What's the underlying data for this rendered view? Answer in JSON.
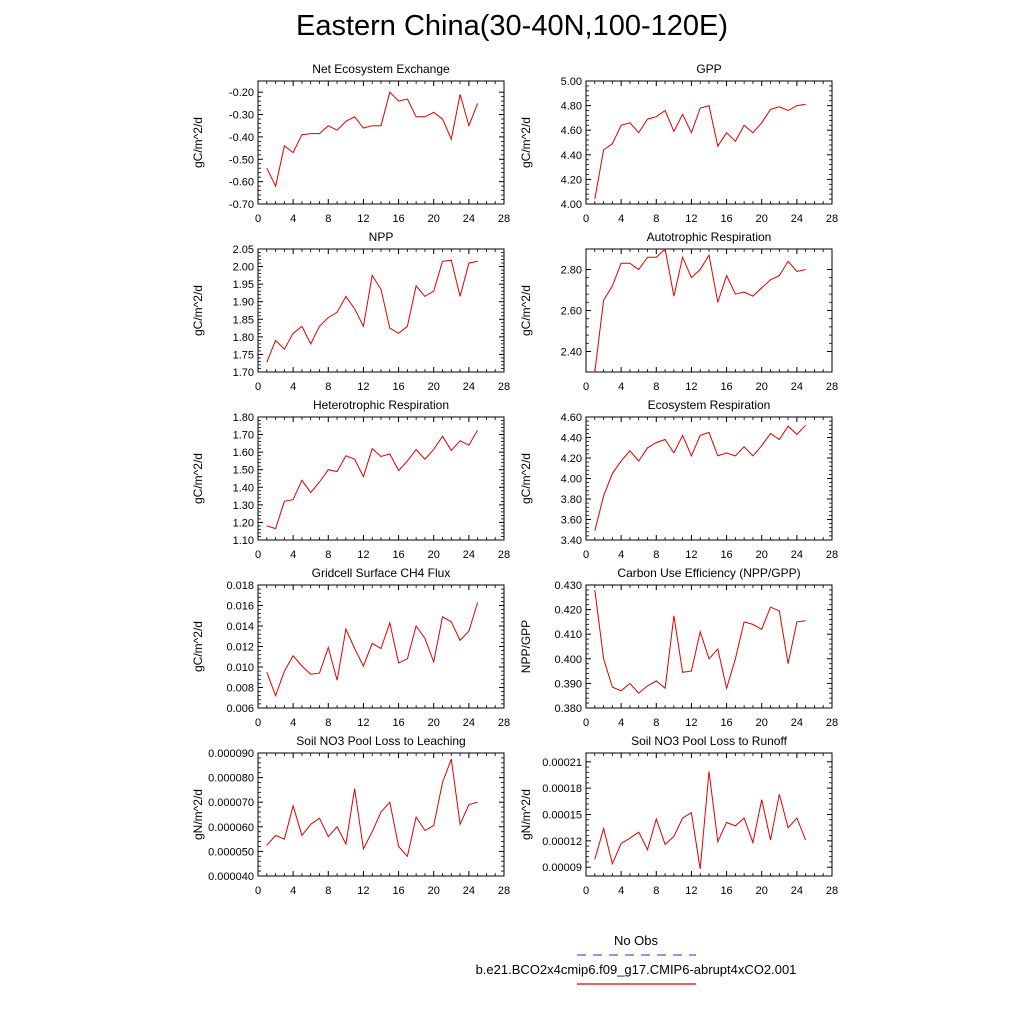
{
  "page": {
    "title": "Eastern China(30-40N,100-120E)"
  },
  "legend": {
    "obs_label": "No Obs",
    "obs_color": "#5555dd",
    "model_label": "b.e21.BCO2x4cmip6.f09_g17.CMIP6-abrupt4xCO2.001",
    "model_color": "#e00000"
  },
  "chart_data": [
    {
      "type": "line",
      "title": "Net Ecosystem Exchange",
      "ylabel": "gC/m^2/d",
      "xlabel": "",
      "xlim": [
        0,
        28
      ],
      "xticks": [
        0,
        4,
        8,
        12,
        16,
        20,
        24,
        28
      ],
      "ylim": [
        -0.7,
        -0.15
      ],
      "yticks": [
        -0.7,
        -0.6,
        -0.5,
        -0.4,
        -0.3,
        -0.2
      ],
      "ytick_labels": [
        "-0.70",
        "-0.60",
        "-0.50",
        "-0.40",
        "-0.30",
        "-0.20"
      ],
      "series": [
        {
          "name": "b.e21.BCO2x4cmip6.f09_g17.CMIP6-abrupt4xCO2.001",
          "x": [
            1,
            2,
            3,
            4,
            5,
            6,
            7,
            8,
            9,
            10,
            11,
            12,
            13,
            14,
            15,
            16,
            17,
            18,
            19,
            20,
            21,
            22,
            23,
            24,
            25
          ],
          "values": [
            -0.54,
            -0.62,
            -0.44,
            -0.47,
            -0.39,
            -0.385,
            -0.385,
            -0.35,
            -0.37,
            -0.33,
            -0.31,
            -0.36,
            -0.35,
            -0.35,
            -0.2,
            -0.24,
            -0.23,
            -0.31,
            -0.31,
            -0.29,
            -0.32,
            -0.41,
            -0.21,
            -0.35,
            -0.25
          ]
        }
      ]
    },
    {
      "type": "line",
      "title": "GPP",
      "ylabel": "gC/m^2/d",
      "xlabel": "",
      "xlim": [
        0,
        28
      ],
      "xticks": [
        0,
        4,
        8,
        12,
        16,
        20,
        24,
        28
      ],
      "ylim": [
        4.0,
        5.0
      ],
      "yticks": [
        4.0,
        4.2,
        4.4,
        4.6,
        4.8,
        5.0
      ],
      "ytick_labels": [
        "4.00",
        "4.20",
        "4.40",
        "4.60",
        "4.80",
        "5.00"
      ],
      "series": [
        {
          "name": "b.e21.BCO2x4cmip6.f09_g17.CMIP6-abrupt4xCO2.001",
          "x": [
            1,
            2,
            3,
            4,
            5,
            6,
            7,
            8,
            9,
            10,
            11,
            12,
            13,
            14,
            15,
            16,
            17,
            18,
            19,
            20,
            21,
            22,
            23,
            24,
            25
          ],
          "values": [
            4.04,
            4.44,
            4.49,
            4.64,
            4.66,
            4.58,
            4.69,
            4.71,
            4.76,
            4.59,
            4.73,
            4.58,
            4.78,
            4.8,
            4.47,
            4.58,
            4.51,
            4.64,
            4.58,
            4.66,
            4.77,
            4.79,
            4.76,
            4.8,
            4.81
          ]
        }
      ]
    },
    {
      "type": "line",
      "title": "NPP",
      "ylabel": "gC/m^2/d",
      "xlabel": "",
      "xlim": [
        0,
        28
      ],
      "xticks": [
        0,
        4,
        8,
        12,
        16,
        20,
        24,
        28
      ],
      "ylim": [
        1.7,
        2.05
      ],
      "yticks": [
        1.7,
        1.75,
        1.8,
        1.85,
        1.9,
        1.95,
        2.0,
        2.05
      ],
      "ytick_labels": [
        "1.70",
        "1.75",
        "1.80",
        "1.85",
        "1.90",
        "1.95",
        "2.00",
        "2.05"
      ],
      "series": [
        {
          "name": "b.e21.BCO2x4cmip6.f09_g17.CMIP6-abrupt4xCO2.001",
          "x": [
            1,
            2,
            3,
            4,
            5,
            6,
            7,
            8,
            9,
            10,
            11,
            12,
            13,
            14,
            15,
            16,
            17,
            18,
            19,
            20,
            21,
            22,
            23,
            24,
            25
          ],
          "values": [
            1.728,
            1.79,
            1.765,
            1.81,
            1.83,
            1.78,
            1.83,
            1.855,
            1.87,
            1.915,
            1.88,
            1.83,
            1.975,
            1.935,
            1.825,
            1.81,
            1.83,
            1.945,
            1.915,
            1.93,
            2.015,
            2.018,
            1.915,
            2.01,
            2.015
          ]
        }
      ]
    },
    {
      "type": "line",
      "title": "Autotrophic Respiration",
      "ylabel": "gC/m^2/d",
      "xlabel": "",
      "xlim": [
        0,
        28
      ],
      "xticks": [
        0,
        4,
        8,
        12,
        16,
        20,
        24,
        28
      ],
      "ylim": [
        2.3,
        2.9
      ],
      "yticks": [
        2.4,
        2.6,
        2.8
      ],
      "ytick_labels": [
        "2.40",
        "2.60",
        "2.80"
      ],
      "series": [
        {
          "name": "b.e21.BCO2x4cmip6.f09_g17.CMIP6-abrupt4xCO2.001",
          "x": [
            1,
            2,
            3,
            4,
            5,
            6,
            7,
            8,
            9,
            10,
            11,
            12,
            13,
            14,
            15,
            16,
            17,
            18,
            19,
            20,
            21,
            22,
            23,
            24,
            25
          ],
          "values": [
            2.3,
            2.65,
            2.72,
            2.83,
            2.83,
            2.8,
            2.86,
            2.86,
            2.9,
            2.67,
            2.86,
            2.76,
            2.8,
            2.87,
            2.64,
            2.77,
            2.68,
            2.69,
            2.67,
            2.71,
            2.75,
            2.77,
            2.84,
            2.79,
            2.8
          ]
        }
      ]
    },
    {
      "type": "line",
      "title": "Heterotrophic Respiration",
      "ylabel": "gC/m^2/d",
      "xlabel": "",
      "xlim": [
        0,
        28
      ],
      "xticks": [
        0,
        4,
        8,
        12,
        16,
        20,
        24,
        28
      ],
      "ylim": [
        1.1,
        1.8
      ],
      "yticks": [
        1.1,
        1.2,
        1.3,
        1.4,
        1.5,
        1.6,
        1.7,
        1.8
      ],
      "ytick_labels": [
        "1.10",
        "1.20",
        "1.30",
        "1.40",
        "1.50",
        "1.60",
        "1.70",
        "1.80"
      ],
      "series": [
        {
          "name": "b.e21.BCO2x4cmip6.f09_g17.CMIP6-abrupt4xCO2.001",
          "x": [
            1,
            2,
            3,
            4,
            5,
            6,
            7,
            8,
            9,
            10,
            11,
            12,
            13,
            14,
            15,
            16,
            17,
            18,
            19,
            20,
            21,
            22,
            23,
            24,
            25
          ],
          "values": [
            1.18,
            1.165,
            1.32,
            1.33,
            1.44,
            1.37,
            1.43,
            1.5,
            1.49,
            1.58,
            1.56,
            1.46,
            1.62,
            1.575,
            1.59,
            1.495,
            1.55,
            1.615,
            1.56,
            1.615,
            1.69,
            1.61,
            1.665,
            1.64,
            1.725
          ]
        }
      ]
    },
    {
      "type": "line",
      "title": "Ecosystem Respiration",
      "ylabel": "gC/m^2/d",
      "xlabel": "",
      "xlim": [
        0,
        28
      ],
      "xticks": [
        0,
        4,
        8,
        12,
        16,
        20,
        24,
        28
      ],
      "ylim": [
        3.4,
        4.6
      ],
      "yticks": [
        3.4,
        3.6,
        3.8,
        4.0,
        4.2,
        4.4,
        4.6
      ],
      "ytick_labels": [
        "3.40",
        "3.60",
        "3.80",
        "4.00",
        "4.20",
        "4.40",
        "4.60"
      ],
      "series": [
        {
          "name": "b.e21.BCO2x4cmip6.f09_g17.CMIP6-abrupt4xCO2.001",
          "x": [
            1,
            2,
            3,
            4,
            5,
            6,
            7,
            8,
            9,
            10,
            11,
            12,
            13,
            14,
            15,
            16,
            17,
            18,
            19,
            20,
            21,
            22,
            23,
            24,
            25
          ],
          "values": [
            3.49,
            3.83,
            4.05,
            4.17,
            4.27,
            4.17,
            4.3,
            4.35,
            4.38,
            4.25,
            4.42,
            4.22,
            4.42,
            4.45,
            4.22,
            4.25,
            4.22,
            4.31,
            4.22,
            4.32,
            4.44,
            4.38,
            4.51,
            4.43,
            4.52
          ]
        }
      ]
    },
    {
      "type": "line",
      "title": "Gridcell Surface CH4 Flux",
      "ylabel": "gC/m^2/d",
      "xlabel": "",
      "xlim": [
        0,
        28
      ],
      "xticks": [
        0,
        4,
        8,
        12,
        16,
        20,
        24,
        28
      ],
      "ylim": [
        0.006,
        0.018
      ],
      "yticks": [
        0.006,
        0.008,
        0.01,
        0.012,
        0.014,
        0.016,
        0.018
      ],
      "ytick_labels": [
        "0.006",
        "0.008",
        "0.010",
        "0.012",
        "0.014",
        "0.016",
        "0.018"
      ],
      "series": [
        {
          "name": "b.e21.BCO2x4cmip6.f09_g17.CMIP6-abrupt4xCO2.001",
          "x": [
            1,
            2,
            3,
            4,
            5,
            6,
            7,
            8,
            9,
            10,
            11,
            12,
            13,
            14,
            15,
            16,
            17,
            18,
            19,
            20,
            21,
            22,
            23,
            24,
            25
          ],
          "values": [
            0.0095,
            0.0072,
            0.0096,
            0.0111,
            0.0101,
            0.0093,
            0.0094,
            0.0119,
            0.0087,
            0.0137,
            0.0118,
            0.0101,
            0.0123,
            0.0118,
            0.0143,
            0.0104,
            0.0108,
            0.014,
            0.0128,
            0.0105,
            0.0149,
            0.0144,
            0.0126,
            0.0135,
            0.0163
          ]
        }
      ]
    },
    {
      "type": "line",
      "title": "Carbon Use Efficiency (NPP/GPP)",
      "ylabel": "NPP/GPP",
      "xlabel": "",
      "xlim": [
        0,
        28
      ],
      "xticks": [
        0,
        4,
        8,
        12,
        16,
        20,
        24,
        28
      ],
      "ylim": [
        0.38,
        0.43
      ],
      "yticks": [
        0.38,
        0.39,
        0.4,
        0.41,
        0.42,
        0.43
      ],
      "ytick_labels": [
        "0.380",
        "0.390",
        "0.400",
        "0.410",
        "0.420",
        "0.430"
      ],
      "series": [
        {
          "name": "b.e21.BCO2x4cmip6.f09_g17.CMIP6-abrupt4xCO2.001",
          "x": [
            1,
            2,
            3,
            4,
            5,
            6,
            7,
            8,
            9,
            10,
            11,
            12,
            13,
            14,
            15,
            16,
            17,
            18,
            19,
            20,
            21,
            22,
            23,
            24,
            25
          ],
          "values": [
            0.428,
            0.4,
            0.3885,
            0.387,
            0.39,
            0.386,
            0.389,
            0.391,
            0.388,
            0.4175,
            0.3945,
            0.395,
            0.411,
            0.4,
            0.404,
            0.388,
            0.4,
            0.415,
            0.414,
            0.412,
            0.421,
            0.4195,
            0.398,
            0.415,
            0.4155
          ]
        }
      ]
    },
    {
      "type": "line",
      "title": "Soil NO3 Pool Loss to Leaching",
      "ylabel": "gN/m^2/d",
      "xlabel": "",
      "xlim": [
        0,
        28
      ],
      "xticks": [
        0,
        4,
        8,
        12,
        16,
        20,
        24,
        28
      ],
      "ylim": [
        4e-05,
        9e-05
      ],
      "yticks": [
        4e-05,
        5e-05,
        6e-05,
        7e-05,
        8e-05,
        9e-05
      ],
      "ytick_labels": [
        "0.000040",
        "0.000050",
        "0.000060",
        "0.000070",
        "0.000080",
        "0.000090"
      ],
      "series": [
        {
          "name": "b.e21.BCO2x4cmip6.f09_g17.CMIP6-abrupt4xCO2.001",
          "x": [
            1,
            2,
            3,
            4,
            5,
            6,
            7,
            8,
            9,
            10,
            11,
            12,
            13,
            14,
            15,
            16,
            17,
            18,
            19,
            20,
            21,
            22,
            23,
            24,
            25
          ],
          "values": [
            5.25e-05,
            5.65e-05,
            5.5e-05,
            6.85e-05,
            5.65e-05,
            6.1e-05,
            6.35e-05,
            5.6e-05,
            6e-05,
            5.3e-05,
            7.55e-05,
            5.1e-05,
            5.8e-05,
            6.6e-05,
            7e-05,
            5.2e-05,
            4.8e-05,
            6.4e-05,
            5.85e-05,
            6.05e-05,
            7.8e-05,
            8.75e-05,
            6.1e-05,
            6.9e-05,
            7e-05
          ]
        }
      ]
    },
    {
      "type": "line",
      "title": "Soil NO3 Pool Loss to Runoff",
      "ylabel": "gN/m^2/d",
      "xlabel": "",
      "xlim": [
        0,
        28
      ],
      "xticks": [
        0,
        4,
        8,
        12,
        16,
        20,
        24,
        28
      ],
      "ylim": [
        8e-05,
        0.00022
      ],
      "yticks": [
        9e-05,
        0.00012,
        0.00015,
        0.00018,
        0.00021
      ],
      "ytick_labels": [
        "0.00009",
        "0.00012",
        "0.00015",
        "0.00018",
        "0.00021"
      ],
      "series": [
        {
          "name": "b.e21.BCO2x4cmip6.f09_g17.CMIP6-abrupt4xCO2.001",
          "x": [
            1,
            2,
            3,
            4,
            5,
            6,
            7,
            8,
            9,
            10,
            11,
            12,
            13,
            14,
            15,
            16,
            17,
            18,
            19,
            20,
            21,
            22,
            23,
            24,
            25
          ],
          "values": [
            9.9e-05,
            0.000134,
            9.4e-05,
            0.000117,
            0.000123,
            0.00013,
            0.00011,
            0.000145,
            0.000116,
            0.000125,
            0.000146,
            0.000152,
            8.8e-05,
            0.000199,
            0.000119,
            0.000141,
            0.000137,
            0.000146,
            0.000118,
            0.000167,
            0.000121,
            0.000173,
            0.000135,
            0.000146,
            0.000121
          ]
        }
      ]
    }
  ]
}
